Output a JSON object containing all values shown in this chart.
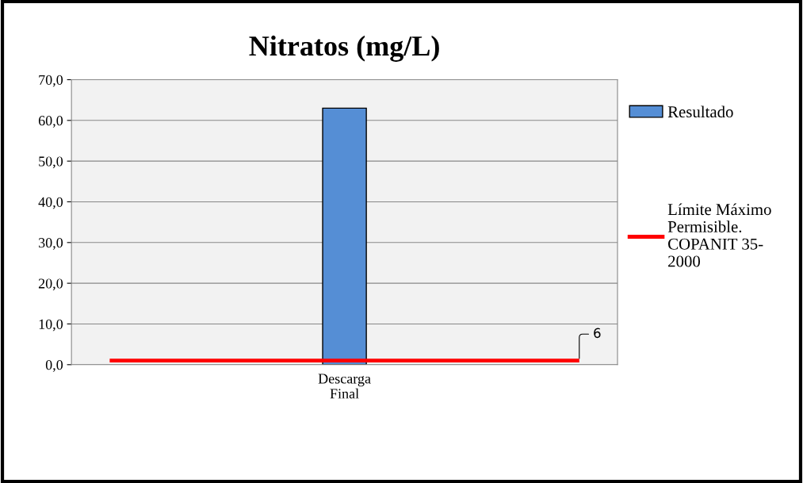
{
  "chart_data": {
    "type": "bar",
    "title": "Nitratos (mg/L)",
    "categories": [
      "Descarga\nFinal"
    ],
    "series": [
      {
        "name": "Resultado",
        "color": "#558ed5",
        "values": [
          63.0
        ]
      }
    ],
    "ref_lines": [
      {
        "axis": "y",
        "value": 1.0,
        "label": "Límite Máximo\nPermisible.\nCOPANIT 35-\n2000",
        "color": "#ff0000",
        "line_style": "solid"
      }
    ],
    "annotations": [
      "6"
    ],
    "ylim": [
      0,
      70
    ],
    "yticks": [
      {
        "value": 0,
        "label": "0,0"
      },
      {
        "value": 10,
        "label": "10,0"
      },
      {
        "value": 20,
        "label": "20,0"
      },
      {
        "value": 30,
        "label": "30,0"
      },
      {
        "value": 40,
        "label": "40,0"
      },
      {
        "value": 50,
        "label": "50,0"
      },
      {
        "value": 60,
        "label": "60,0"
      },
      {
        "value": 70,
        "label": "70,0"
      }
    ],
    "grid": "y",
    "legend": "right"
  }
}
